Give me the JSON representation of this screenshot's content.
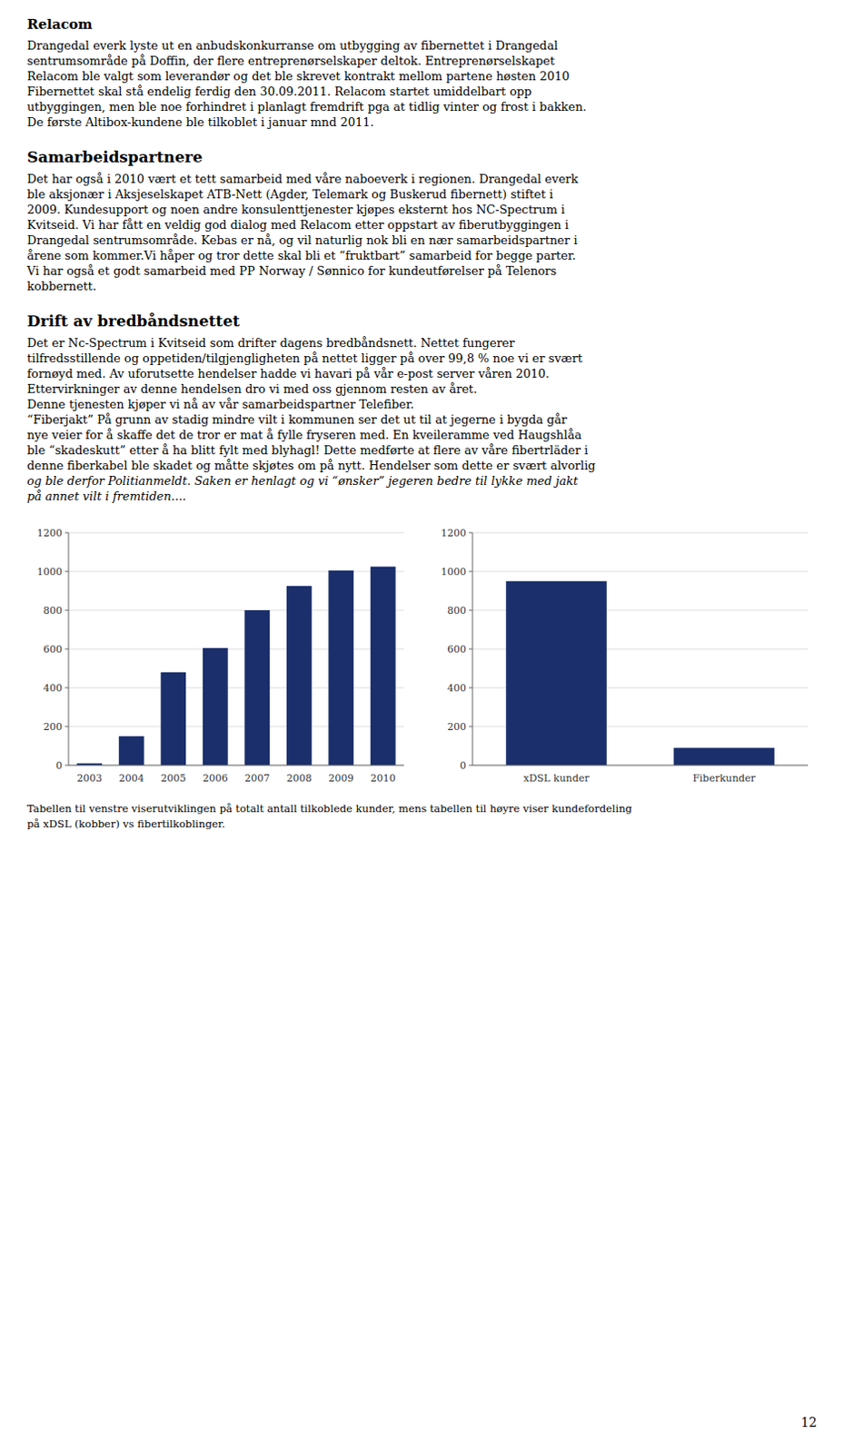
{
  "title1": "Relacom",
  "para1_lines": [
    "Drangedal everk lyste ut en anbudskonkurranse om utbygging av fibernettet i Drangedal",
    "sentrumsområde på Doffin, der flere entreprenørselskaper deltok. Entreprenørselskapet",
    "Relacom ble valgt som leverandør og det ble skrevet kontrakt mellom partene høsten 2010",
    "Fibernettet skal stå endelig ferdig den 30.09.2011. Relacom startet umiddelbart opp",
    "utbyggingen, men ble noe forhindret i planlagt fremdrift pga at tidlig vinter og frost i bakken.",
    "De første Altibox-kundene ble tilkoblet i januar mnd 2011."
  ],
  "title2": "Samarbeidspartnere",
  "para2_lines": [
    "Det har også i 2010 vært et tett samarbeid med våre naboeverk i regionen. Drangedal everk",
    "ble aksjonær i Aksjeselskapet ATB-Nett (Agder, Telemark og Buskerud fibernett) stiftet i",
    "2009. Kundesupport og noen andre konsulenttjenester kjøpes eksternt hos NC-Spectrum i",
    "Kvitseid. Vi har fått en veldig god dialog med Relacom etter oppstart av fiberutbyggingen i",
    "Drangedal sentrumsområde. Kebas er nå, og vil naturlig nok bli en nær samarbeidspartner i",
    "årene som kommer.Vi håper og tror dette skal bli et “fruktbart” samarbeid for begge parter.",
    "Vi har også et godt samarbeid med PP Norway / Sønnico for kundeutførelser på Telenors",
    "kobbernett."
  ],
  "title3": "Drift av bredbåndsnettet",
  "para3_lines": [
    "Det er Nc-Spectrum i Kvitseid som drifter dagens bredbåndsnett. Nettet fungerer",
    "tilfredsstillende og oppetiden/tilgjengligheten på nettet ligger på over 99,8 % noe vi er svært",
    "fornøyd med. Av uforutsette hendelser hadde vi havari på vår e-post server våren 2010.",
    "Ettervirkninger av denne hendelsen dro vi med oss gjennom resten av året.",
    "Denne tjenesten kjøper vi nå av vår samarbeidspartner Telefiber.",
    "“Fiberjakt” På grunn av stadig mindre vilt i kommunen ser det ut til at jegerne i bygda går",
    "nye veier for å skaffe det de tror er mat å fylle fryseren med. En kveileramme ved Haugshlåa",
    "ble “skadeskutt” etter å ha blitt fylt med blyhagl! Dette medførte at flere av våre fibertrläder i",
    "denne fiberkabel ble skadet og måtte skjøtes om på nytt. Hendelser som dette er svært alvorlig",
    "og ble derfor Politianmeldt. Saken er henlagt og vi “ønsker” jegeren bedre til lykke med jakt",
    "på annet vilt i fremtiden...."
  ],
  "chart_data": [
    {
      "type": "bar",
      "categories": [
        "2003",
        "2004",
        "2005",
        "2006",
        "2007",
        "2008",
        "2009",
        "2010"
      ],
      "values": [
        10,
        150,
        480,
        605,
        800,
        925,
        1005,
        1025
      ],
      "color": "#1a2f6b",
      "ylim": [
        0,
        1200
      ],
      "yticks": [
        0,
        200,
        400,
        600,
        800,
        1000,
        1200
      ],
      "grid": true
    },
    {
      "type": "bar",
      "categories": [
        "xDSL kunder",
        "Fiberkunder"
      ],
      "values": [
        950,
        90
      ],
      "color": "#1a2f6b",
      "ylim": [
        0,
        1200
      ],
      "yticks": [
        0,
        200,
        400,
        600,
        800,
        1000,
        1200
      ],
      "grid": true
    }
  ],
  "caption_lines": [
    "Tabellen til venstre viserutviklingen på totalt antall tilkoblede kunder, mens tabellen til høyre viser kundefordeling",
    "på xDSL (kobber) vs fibertilkoblinger."
  ],
  "page_number": "12"
}
